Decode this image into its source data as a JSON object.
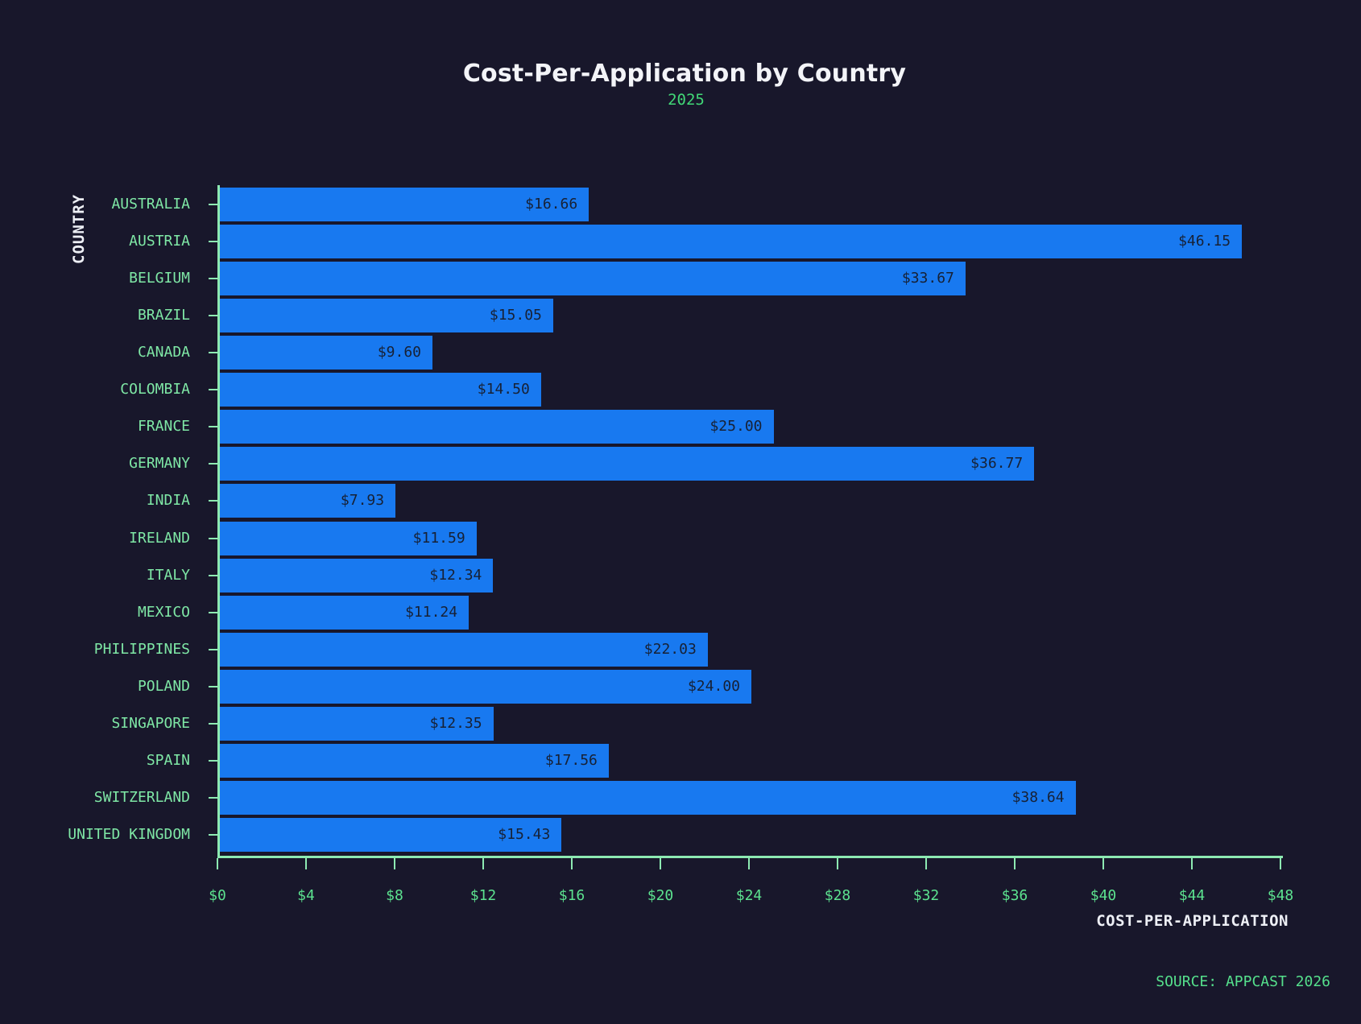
{
  "title": "Cost-Per-Application by Country",
  "subtitle": "2025",
  "source": "SOURCE: APPCAST 2026",
  "colors": {
    "background": "#18172B",
    "bar": "#1879F0",
    "axis_line": "#8DEAB2",
    "tick_label": "#5CE28F",
    "category_label": "#7FE8A6",
    "subtitle": "#41D877",
    "source": "#55E08C",
    "title": "#F3F4F8",
    "axis_title": "#EDEFF5",
    "value_label": "#172135"
  },
  "chart_data": {
    "type": "bar",
    "orientation": "horizontal",
    "title": "Cost-Per-Application by Country",
    "subtitle": "2025",
    "xlabel": "COST-PER-APPLICATION",
    "ylabel": "COUNTRY",
    "xlim": [
      0,
      48
    ],
    "x_tick_interval": 4,
    "x_tick_labels": [
      "$0",
      "$4",
      "$8",
      "$12",
      "$16",
      "$20",
      "$24",
      "$28",
      "$32",
      "$36",
      "$40",
      "$44",
      "$48"
    ],
    "grid": false,
    "legend": false,
    "categories": [
      "AUSTRALIA",
      "AUSTRIA",
      "BELGIUM",
      "BRAZIL",
      "CANADA",
      "COLOMBIA",
      "FRANCE",
      "GERMANY",
      "INDIA",
      "IRELAND",
      "ITALY",
      "MEXICO",
      "PHILIPPINES",
      "POLAND",
      "SINGAPORE",
      "SPAIN",
      "SWITZERLAND",
      "UNITED KINGDOM"
    ],
    "values": [
      16.66,
      46.15,
      33.67,
      15.05,
      9.6,
      14.5,
      25.0,
      36.77,
      7.93,
      11.59,
      12.34,
      11.24,
      22.03,
      24.0,
      12.35,
      17.56,
      38.64,
      15.43
    ],
    "value_labels": [
      "$16.66",
      "$46.15",
      "$33.67",
      "$15.05",
      "$9.60",
      "$14.50",
      "$25.00",
      "$36.77",
      "$7.93",
      "$11.59",
      "$12.34",
      "$11.24",
      "$22.03",
      "$24.00",
      "$12.35",
      "$17.56",
      "$38.64",
      "$15.43"
    ]
  }
}
